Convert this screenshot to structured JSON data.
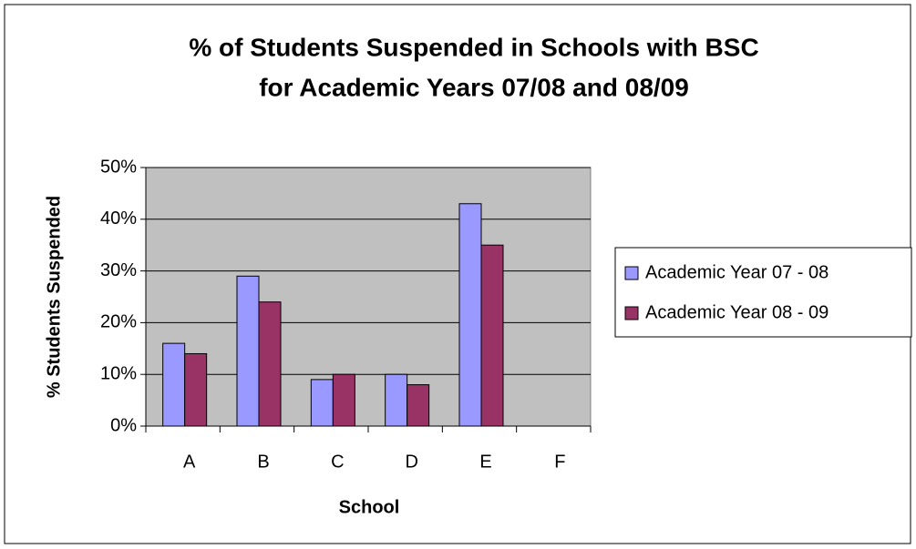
{
  "chart_data": {
    "type": "bar",
    "title": [
      "% of Students Suspended in Schools with BSC",
      "for Academic Years 07/08 and 08/09"
    ],
    "x_label": "School",
    "y_label": "% Students Suspended",
    "categories": [
      "A",
      "B",
      "C",
      "D",
      "E",
      "F"
    ],
    "series": [
      {
        "name": "Academic Year 07 - 08",
        "color": "#9999ff",
        "values": [
          16,
          29,
          9,
          10,
          43,
          null
        ]
      },
      {
        "name": "Academic Year 08 - 09",
        "color": "#993366",
        "values": [
          14,
          24,
          10,
          8,
          35,
          null
        ]
      }
    ],
    "ylim": [
      0,
      50
    ],
    "yticks": [
      {
        "value": 0,
        "label": "0%"
      },
      {
        "value": 10,
        "label": "10%"
      },
      {
        "value": 20,
        "label": "20%"
      },
      {
        "value": 30,
        "label": "30%"
      },
      {
        "value": 40,
        "label": "40%"
      },
      {
        "value": 50,
        "label": "50%"
      }
    ],
    "grid": true,
    "legend": "right",
    "plot_background": "#c0c0c0"
  }
}
